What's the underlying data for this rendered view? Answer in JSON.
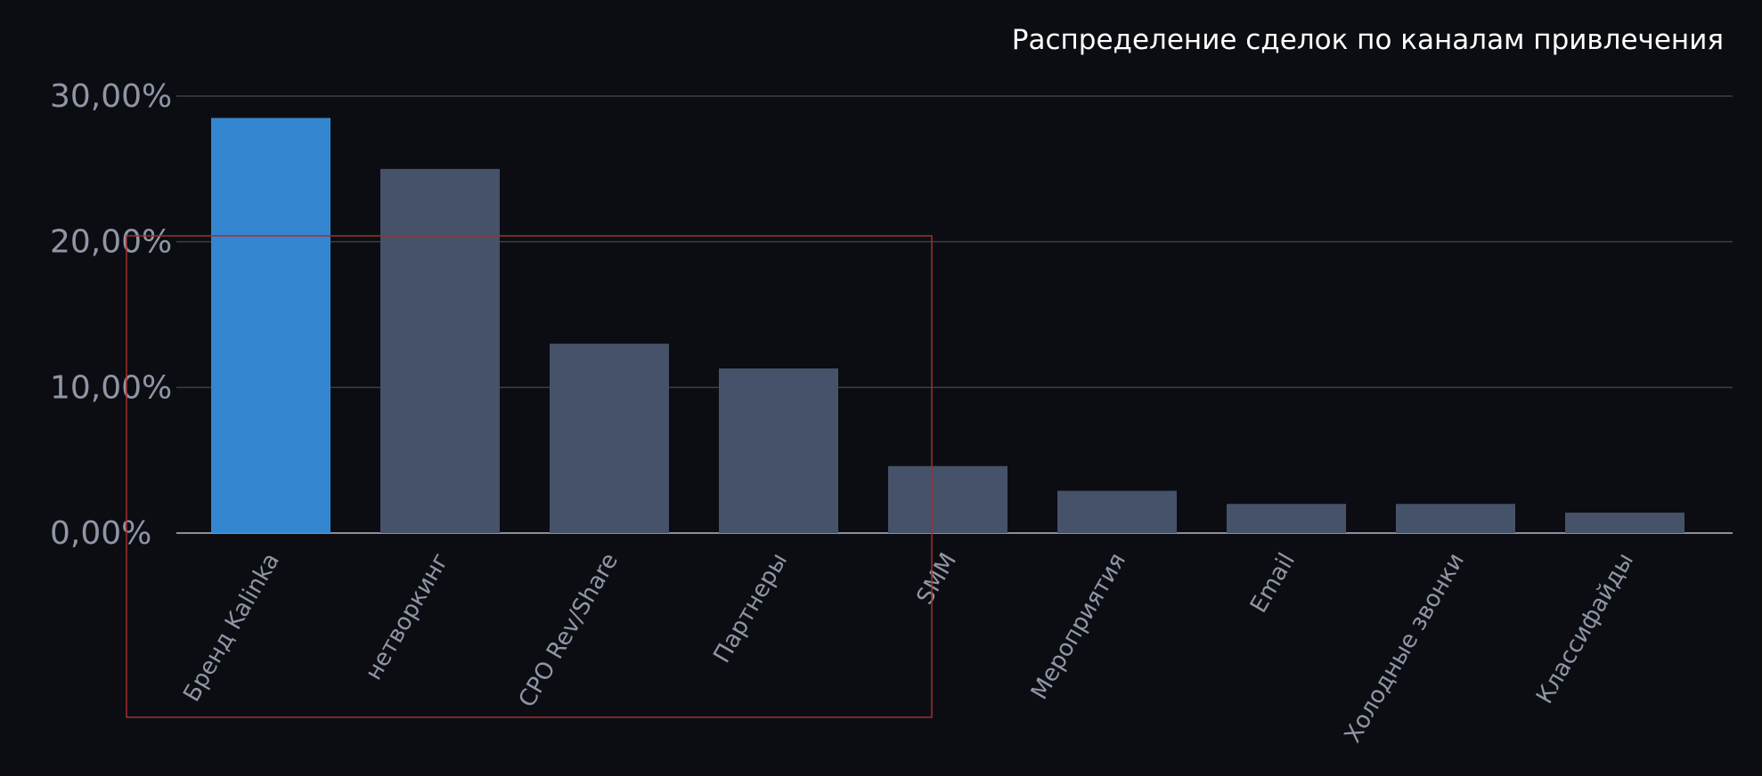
{
  "colors": {
    "background": "#0c0d12",
    "highlight_bar": "#3586d0",
    "bar": "#465269",
    "gridline": "#3a3e4b",
    "baseline": "#8a8f9b",
    "tick_text": "#8e96a6",
    "title_text": "#ffffff",
    "annotation_box": "#a0302c"
  },
  "chart_data": {
    "type": "bar",
    "title": "Распределение сделок по каналам привлечения",
    "categories": [
      "Бренд Kalinka",
      "нетворкинг",
      "CPO Rev/Share",
      "Партнеры",
      "SMM",
      "Мероприятия",
      "Email",
      "Холодные звонки",
      "Классифайды"
    ],
    "values": [
      28.5,
      25.0,
      13.0,
      11.3,
      4.6,
      2.9,
      2.0,
      2.0,
      1.4
    ],
    "highlight_index": 0,
    "ylim": [
      0,
      30
    ],
    "yticks": [
      0,
      10,
      20,
      30
    ],
    "ytick_labels": [
      "0,00%",
      "10,00%",
      "20,00%",
      "30,00%"
    ],
    "grid": true,
    "legend": "none"
  }
}
